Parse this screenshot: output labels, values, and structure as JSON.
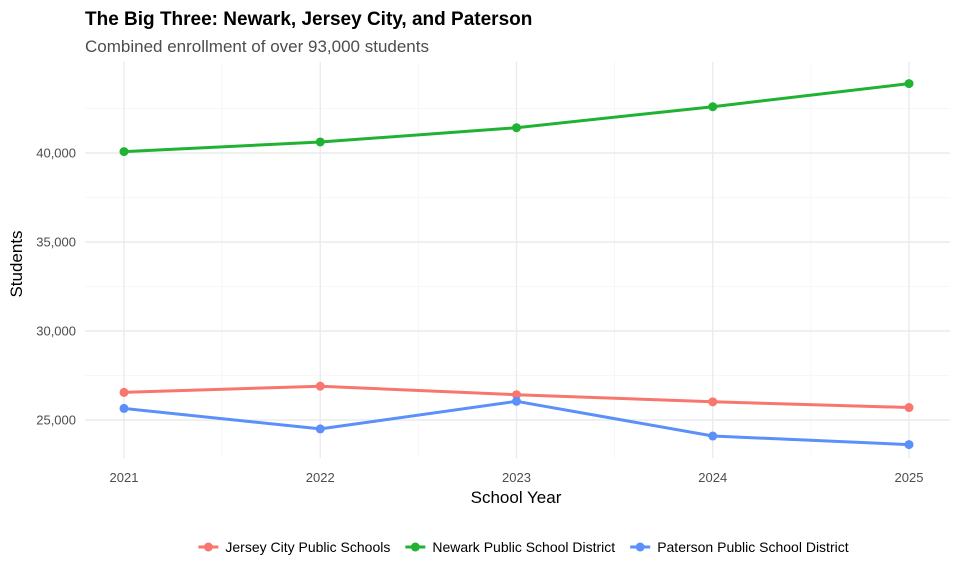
{
  "chart_data": {
    "type": "line",
    "title": "The Big Three: Newark, Jersey City, and Paterson",
    "subtitle": "Combined enrollment of over 93,000 students",
    "xlabel": "School Year",
    "ylabel": "Students",
    "x": [
      2021,
      2022,
      2023,
      2024,
      2025
    ],
    "x_tick_labels": [
      "2021",
      "2022",
      "2023",
      "2024",
      "2025"
    ],
    "y_ticks": [
      25000,
      30000,
      35000,
      40000
    ],
    "y_tick_labels": [
      "25,000",
      "30,000",
      "35,000",
      "40,000"
    ],
    "ylim": [
      23000,
      45000
    ],
    "grid": true,
    "legend_position": "bottom",
    "series": [
      {
        "name": "Jersey City Public Schools",
        "color": "#F8766D",
        "values": [
          26550,
          26900,
          26420,
          26020,
          25700
        ]
      },
      {
        "name": "Newark Public School District",
        "color": "#1fb233",
        "values": [
          40080,
          40620,
          41420,
          42600,
          43900
        ]
      },
      {
        "name": "Paterson Public School District",
        "color": "#5b8ff9",
        "values": [
          25650,
          24500,
          26050,
          24100,
          23620
        ]
      }
    ]
  }
}
